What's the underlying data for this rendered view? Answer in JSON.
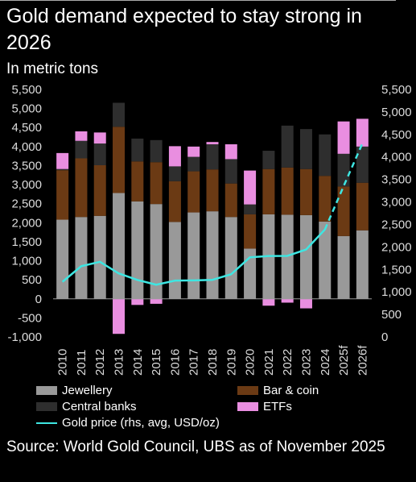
{
  "title": "Gold demand expected to stay strong in 2026",
  "subtitle": "In metric tons",
  "source": "Source: World Gold Council, UBS as of November 2025",
  "colors": {
    "jewellery": "#999999",
    "bar_coin": "#6b3a14",
    "central_banks": "#2e2e2e",
    "etfs": "#e98ee0",
    "gold_price": "#3ee6e2"
  },
  "legend": {
    "jewellery": "Jewellery",
    "bar_coin": "Bar & coin",
    "central_banks": "Central banks",
    "etfs": "ETFs",
    "gold_price": "Gold price (rhs, avg, USD/oz)"
  },
  "chart_data": {
    "type": "bar",
    "stacked": true,
    "categories": [
      "2010",
      "2011",
      "2012",
      "2013",
      "2014",
      "2015",
      "2016",
      "2017",
      "2018",
      "2019",
      "2020",
      "2021",
      "2022",
      "2023",
      "2024",
      "2025f",
      "2026f"
    ],
    "series": [
      {
        "name": "Jewellery",
        "values": [
          2080,
          2150,
          2180,
          2780,
          2560,
          2490,
          2020,
          2270,
          2300,
          2150,
          1320,
          2220,
          2210,
          2200,
          2030,
          1650,
          1800
        ]
      },
      {
        "name": "Bar & coin",
        "values": [
          1300,
          1540,
          1330,
          1740,
          1050,
          1100,
          1070,
          1080,
          1100,
          880,
          900,
          1190,
          1240,
          1210,
          1200,
          1300,
          1250
        ]
      },
      {
        "name": "Central banks",
        "values": [
          30,
          460,
          570,
          630,
          600,
          580,
          390,
          380,
          660,
          640,
          260,
          480,
          1100,
          1050,
          1090,
          860,
          950
        ]
      },
      {
        "name": "ETFs",
        "values": [
          420,
          250,
          290,
          -920,
          -160,
          -130,
          530,
          270,
          60,
          390,
          890,
          -180,
          -100,
          -250,
          0,
          850,
          730
        ]
      }
    ],
    "gold_price": {
      "name": "Gold price (rhs, avg, USD/oz)",
      "values": [
        1225,
        1572,
        1669,
        1411,
        1266,
        1160,
        1251,
        1257,
        1268,
        1393,
        1770,
        1799,
        1801,
        1943,
        2386,
        3350,
        4300
      ],
      "dashed_from_index": 14
    },
    "y_left": {
      "ticks": [
        5500,
        5000,
        4500,
        4000,
        3500,
        3000,
        2500,
        2000,
        1500,
        1000,
        500,
        0,
        -500,
        -1000
      ],
      "min": -1000,
      "max": 5500
    },
    "y_right": {
      "ticks": [
        5500,
        5000,
        4500,
        4000,
        3500,
        3000,
        2500,
        2000,
        1500,
        1000,
        500,
        0
      ],
      "min": 0,
      "max": 5500
    },
    "tick_labels_left": [
      "5,500",
      "5,000",
      "4,500",
      "4,000",
      "3,500",
      "3,000",
      "2,500",
      "2,000",
      "1,500",
      "1,000",
      "500",
      "0",
      "-500",
      "-1,000"
    ],
    "tick_labels_right": [
      "5,500",
      "5,000",
      "4,500",
      "4,000",
      "3,500",
      "3,000",
      "2,500",
      "2,000",
      "1,500",
      "1,000",
      "500",
      "0"
    ],
    "grid": false
  }
}
